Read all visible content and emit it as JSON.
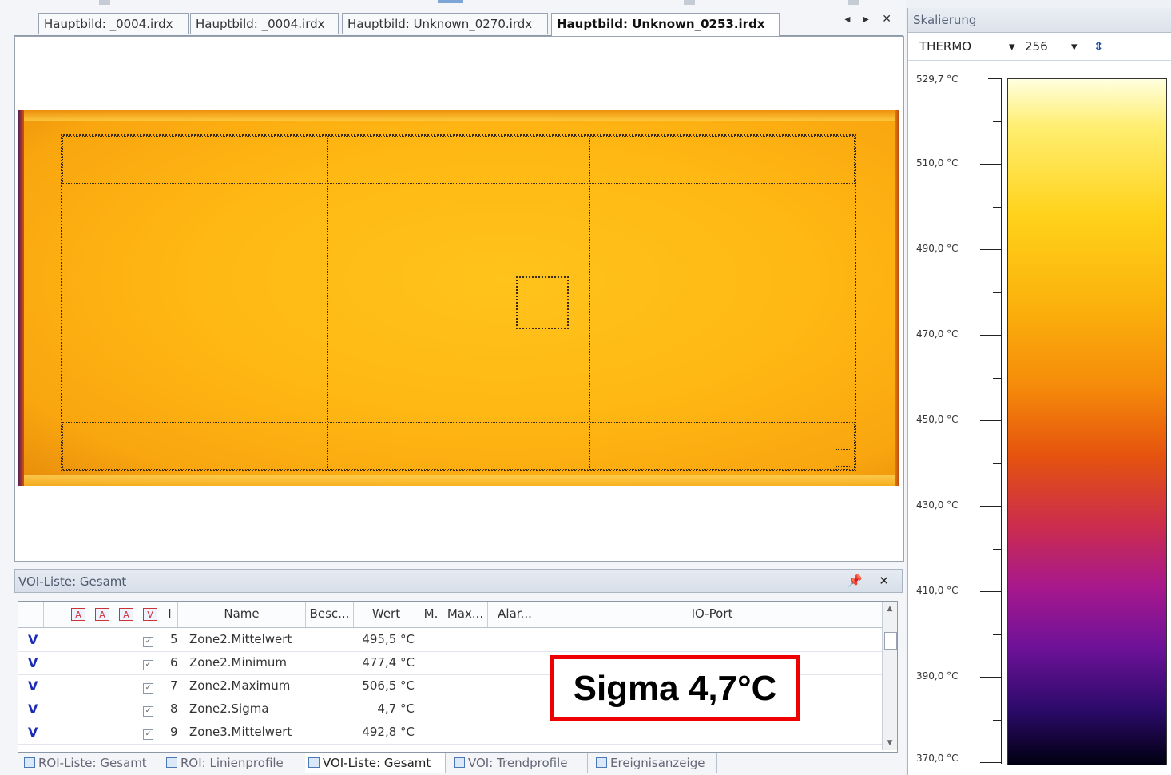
{
  "tabs": [
    {
      "label": "Hauptbild: _0004.irdx"
    },
    {
      "label": "Hauptbild: _0004.irdx"
    },
    {
      "label": "Hauptbild: Unknown_0270.irdx"
    },
    {
      "label": "Hauptbild: Unknown_0253.irdx",
      "active": true
    }
  ],
  "tab_controls": "◂ ▸ ✕",
  "voi_panel": {
    "title": "VOI-Liste: Gesamt",
    "controls": "📌 ✕",
    "header_icons": [
      "A",
      "A",
      "A",
      "V"
    ],
    "columns": [
      "Name",
      "Besc...",
      "Wert",
      "M.",
      "Max...",
      "Alar...",
      "IO-Port"
    ],
    "rows": [
      {
        "flag": "V",
        "num": "5",
        "name": "Zone2.Mittelwert",
        "value": "495,5 °C"
      },
      {
        "flag": "V",
        "num": "6",
        "name": "Zone2.Minimum",
        "value": "477,4 °C"
      },
      {
        "flag": "V",
        "num": "7",
        "name": "Zone2.Maximum",
        "value": "506,5 °C"
      },
      {
        "flag": "V",
        "num": "8",
        "name": "Zone2.Sigma",
        "value": "4,7 °C"
      },
      {
        "flag": "V",
        "num": "9",
        "name": "Zone3.Mittelwert",
        "value": "492,8 °C"
      }
    ]
  },
  "annotation": {
    "text": "Sigma 4,7°C",
    "border_color": "#e00000"
  },
  "bottom_tabs": [
    {
      "label": "ROI-Liste: Gesamt"
    },
    {
      "label": "ROI: Linienprofile"
    },
    {
      "label": "VOI-Liste: Gesamt",
      "active": true
    },
    {
      "label": "VOI: Trendprofile"
    },
    {
      "label": "Ereignisanzeige"
    }
  ],
  "scale_panel": {
    "title": "Skalierung",
    "palette": "THERMO",
    "levels": "256",
    "tick_labels": [
      "529,7 °C",
      "510,0 °C",
      "490,0 °C",
      "470,0 °C",
      "450,0 °C",
      "430,0 °C",
      "410,0 °C",
      "390,0 °C",
      "370,0 °C"
    ]
  }
}
